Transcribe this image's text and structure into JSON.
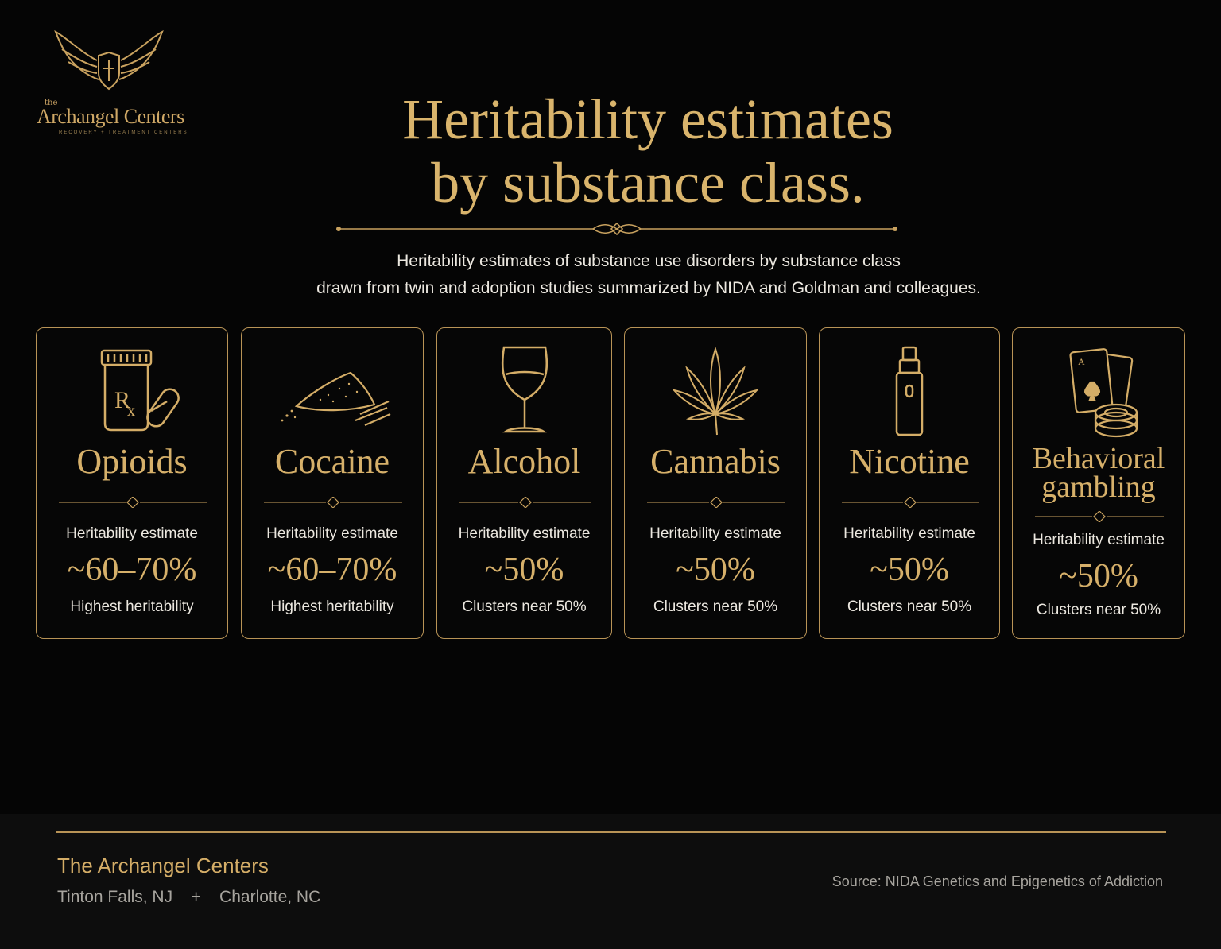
{
  "logo": {
    "the": "the",
    "brand": "Archangel Centers",
    "tagline": "RECOVERY + TREATMENT CENTERS",
    "icon": "winged-shield-icon"
  },
  "header": {
    "title_line1": "Heritability estimates",
    "title_line2": "by substance class.",
    "subtitle_line1": "Heritability estimates of substance use disorders by substance class",
    "subtitle_line2": "drawn from twin and adoption studies summarized by NIDA and Goldman and colleagues."
  },
  "cards": [
    {
      "name": "Opioids",
      "label": "Heritability estimate",
      "value": "~60–70%",
      "note": "Highest heritability",
      "icon": "pill-bottle-icon"
    },
    {
      "name": "Cocaine",
      "label": "Heritability estimate",
      "value": "~60–70%",
      "note": "Highest heritability",
      "icon": "powder-pile-icon"
    },
    {
      "name": "Alcohol",
      "label": "Heritability estimate",
      "value": "~50%",
      "note": "Clusters near 50%",
      "icon": "wine-glass-icon"
    },
    {
      "name": "Cannabis",
      "label": "Heritability estimate",
      "value": "~50%",
      "note": "Clusters near 50%",
      "icon": "cannabis-leaf-icon"
    },
    {
      "name": "Nicotine",
      "label": "Heritability estimate",
      "value": "~50%",
      "note": "Clusters near 50%",
      "icon": "vape-pen-icon"
    },
    {
      "name_line1": "Behavioral",
      "name_line2": "gambling",
      "label": "Heritability estimate",
      "value": "~50%",
      "note": "Clusters near 50%",
      "icon": "cards-chips-icon"
    }
  ],
  "footer": {
    "org": "The Archangel Centers",
    "location1": "Tinton Falls, NJ",
    "separator": "+",
    "location2": "Charlotte, NC",
    "source": "Source: NIDA Genetics and Epigenetics of Addiction"
  },
  "colors": {
    "gold": "#d4ad67",
    "background": "#050505",
    "text": "#ece8e0",
    "muted": "#a7a49e"
  }
}
